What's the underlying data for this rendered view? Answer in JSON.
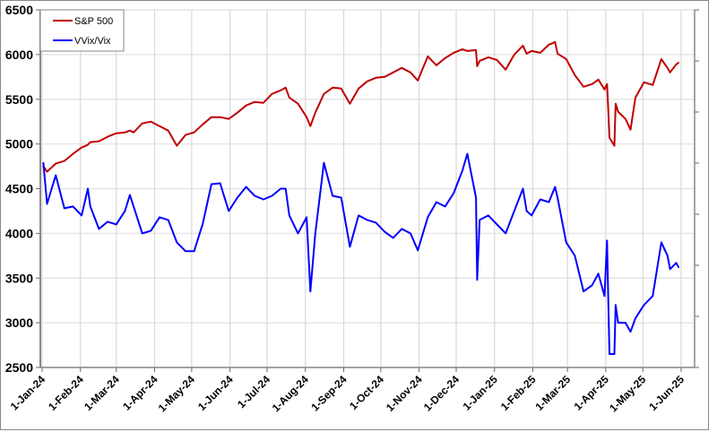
{
  "chart_data": {
    "type": "line",
    "title": "",
    "xlabel": "",
    "ylabel": "",
    "ylim": [
      2500,
      6500
    ],
    "yticks": [
      2500,
      3000,
      3500,
      4000,
      4500,
      5000,
      5500,
      6000,
      6500
    ],
    "y2_ticks_unlabeled": true,
    "xlim": [
      "2024-01-01",
      "2025-06-01"
    ],
    "xticks": [
      {
        "date": "2024-01-01",
        "label": "1-Jan-24"
      },
      {
        "date": "2024-02-01",
        "label": "1-Feb-24"
      },
      {
        "date": "2024-03-01",
        "label": "1-Mar-24"
      },
      {
        "date": "2024-04-01",
        "label": "1-Apr-24"
      },
      {
        "date": "2024-05-01",
        "label": "1-May-24"
      },
      {
        "date": "2024-06-01",
        "label": "1-Jun-24"
      },
      {
        "date": "2024-07-01",
        "label": "1-Jul-24"
      },
      {
        "date": "2024-08-01",
        "label": "1-Aug-24"
      },
      {
        "date": "2024-09-01",
        "label": "1-Sep-24"
      },
      {
        "date": "2024-10-01",
        "label": "1-Oct-24"
      },
      {
        "date": "2024-11-01",
        "label": "1-Nov-24"
      },
      {
        "date": "2024-12-01",
        "label": "1-Dec-24"
      },
      {
        "date": "2025-01-01",
        "label": "1-Jan-25"
      },
      {
        "date": "2025-02-01",
        "label": "1-Feb-25"
      },
      {
        "date": "2025-03-01",
        "label": "1-Mar-25"
      },
      {
        "date": "2025-04-01",
        "label": "1-Apr-25"
      },
      {
        "date": "2025-05-01",
        "label": "1-May-25"
      },
      {
        "date": "2025-06-01",
        "label": "1-Jun-25"
      }
    ],
    "grid": true,
    "legend_position": "top-left",
    "x": [
      "2024-01-02",
      "2024-01-05",
      "2024-01-12",
      "2024-01-19",
      "2024-01-26",
      "2024-02-02",
      "2024-02-07",
      "2024-02-09",
      "2024-02-16",
      "2024-02-23",
      "2024-03-01",
      "2024-03-08",
      "2024-03-12",
      "2024-03-15",
      "2024-03-22",
      "2024-03-29",
      "2024-04-05",
      "2024-04-12",
      "2024-04-19",
      "2024-04-26",
      "2024-05-03",
      "2024-05-10",
      "2024-05-17",
      "2024-05-24",
      "2024-05-31",
      "2024-06-07",
      "2024-06-14",
      "2024-06-21",
      "2024-06-28",
      "2024-07-05",
      "2024-07-12",
      "2024-07-16",
      "2024-07-19",
      "2024-07-26",
      "2024-08-02",
      "2024-08-05",
      "2024-08-09",
      "2024-08-16",
      "2024-08-23",
      "2024-08-30",
      "2024-09-06",
      "2024-09-13",
      "2024-09-20",
      "2024-09-27",
      "2024-10-04",
      "2024-10-11",
      "2024-10-18",
      "2024-10-25",
      "2024-10-31",
      "2024-11-08",
      "2024-11-15",
      "2024-11-22",
      "2024-11-29",
      "2024-12-06",
      "2024-12-10",
      "2024-12-17",
      "2024-12-18",
      "2024-12-20",
      "2024-12-27",
      "2025-01-03",
      "2025-01-10",
      "2025-01-17",
      "2025-01-24",
      "2025-01-27",
      "2025-01-31",
      "2025-02-07",
      "2025-02-14",
      "2025-02-19",
      "2025-02-21",
      "2025-02-28",
      "2025-03-07",
      "2025-03-14",
      "2025-03-21",
      "2025-03-26",
      "2025-03-31",
      "2025-04-02",
      "2025-04-03",
      "2025-04-04",
      "2025-04-08",
      "2025-04-09",
      "2025-04-11",
      "2025-04-17",
      "2025-04-21",
      "2025-04-25",
      "2025-05-02",
      "2025-05-09",
      "2025-05-16",
      "2025-05-21",
      "2025-05-23",
      "2025-05-28",
      "2025-05-30"
    ],
    "series": [
      {
        "name": "S&P 500",
        "color": "#c00000",
        "values": [
          4750,
          4690,
          4780,
          4810,
          4890,
          4960,
          4990,
          5020,
          5030,
          5080,
          5120,
          5130,
          5150,
          5130,
          5230,
          5250,
          5200,
          5150,
          4980,
          5100,
          5130,
          5220,
          5300,
          5300,
          5280,
          5350,
          5430,
          5470,
          5460,
          5560,
          5600,
          5630,
          5520,
          5450,
          5300,
          5200,
          5350,
          5560,
          5630,
          5620,
          5450,
          5620,
          5700,
          5740,
          5750,
          5800,
          5850,
          5800,
          5710,
          5980,
          5880,
          5960,
          6020,
          6060,
          6040,
          6050,
          5870,
          5930,
          5970,
          5940,
          5830,
          6000,
          6100,
          6010,
          6040,
          6020,
          6110,
          6140,
          6010,
          5950,
          5770,
          5640,
          5670,
          5720,
          5610,
          5670,
          5400,
          5070,
          4980,
          5450,
          5360,
          5280,
          5160,
          5520,
          5690,
          5660,
          5950,
          5850,
          5800,
          5890,
          5910
        ]
      },
      {
        "name": "VVix/Vix",
        "color": "#0000ff",
        "values": [
          4790,
          4330,
          4650,
          4280,
          4300,
          4200,
          4500,
          4300,
          4050,
          4130,
          4100,
          4250,
          4430,
          4300,
          4000,
          4030,
          4180,
          4150,
          3900,
          3800,
          3800,
          4110,
          4550,
          4560,
          4250,
          4400,
          4520,
          4420,
          4380,
          4420,
          4500,
          4500,
          4200,
          4000,
          4180,
          3350,
          4000,
          4790,
          4420,
          4400,
          3850,
          4200,
          4150,
          4120,
          4020,
          3950,
          4050,
          4000,
          3810,
          4180,
          4350,
          4300,
          4450,
          4700,
          4890,
          4400,
          3480,
          4150,
          4200,
          4100,
          4000,
          4250,
          4500,
          4250,
          4200,
          4380,
          4350,
          4520,
          4400,
          3900,
          3750,
          3350,
          3420,
          3550,
          3300,
          3920,
          3300,
          2650,
          2650,
          3200,
          3000,
          3000,
          2900,
          3050,
          3200,
          3300,
          3900,
          3750,
          3600,
          3670,
          3620
        ]
      }
    ]
  }
}
